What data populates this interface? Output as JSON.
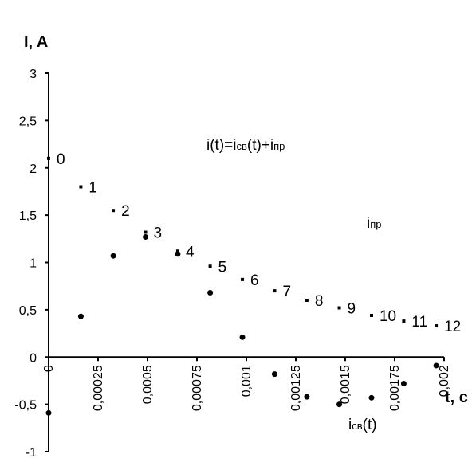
{
  "chart_data": {
    "type": "scatter",
    "title": "",
    "ylabel": "I, A",
    "xlabel": "t, c",
    "xlim": [
      0,
      0.002
    ],
    "ylim": [
      -1,
      3
    ],
    "x_ticks": [
      {
        "value": 0,
        "label": "0"
      },
      {
        "value": 0.00025,
        "label": "0,00025"
      },
      {
        "value": 0.0005,
        "label": "0,0005"
      },
      {
        "value": 0.00075,
        "label": "0,00075"
      },
      {
        "value": 0.001,
        "label": "0,001"
      },
      {
        "value": 0.00125,
        "label": "0,00125"
      },
      {
        "value": 0.0015,
        "label": "0,0015"
      },
      {
        "value": 0.00175,
        "label": "0,00175"
      },
      {
        "value": 0.002,
        "label": "0,002"
      }
    ],
    "y_ticks": [
      {
        "value": 3,
        "label": "3"
      },
      {
        "value": 2.5,
        "label": "2,5"
      },
      {
        "value": 2,
        "label": "2"
      },
      {
        "value": 1.5,
        "label": "1,5"
      },
      {
        "value": 1,
        "label": "1"
      },
      {
        "value": 0.5,
        "label": "0,5"
      },
      {
        "value": 0,
        "label": "0"
      },
      {
        "value": -0.5,
        "label": "-0,5"
      },
      {
        "value": -1,
        "label": "-1"
      }
    ],
    "grid": false,
    "series": [
      {
        "name": "i(t)=iсв(t)+iпр",
        "marker": "small-square",
        "x": [
          0,
          0.000163,
          0.000327,
          0.00049,
          0.000653,
          0.000817,
          0.00098,
          0.001143,
          0.001306,
          0.00147,
          0.001633,
          0.001796,
          0.00196
        ],
        "y": [
          2.1,
          1.8,
          1.55,
          1.32,
          1.12,
          0.96,
          0.82,
          0.7,
          0.6,
          0.52,
          0.44,
          0.38,
          0.33
        ],
        "point_labels": [
          "0",
          "1",
          "2",
          "3",
          "4",
          "5",
          "6",
          "7",
          "8",
          "9",
          "10",
          "11",
          "12"
        ]
      },
      {
        "name": "iсв(t)",
        "marker": "dot",
        "x": [
          0,
          0.000163,
          0.000327,
          0.00049,
          0.000653,
          0.000817,
          0.00098,
          0.001143,
          0.001306,
          0.00147,
          0.001633,
          0.001796,
          0.00196
        ],
        "y": [
          -0.59,
          0.43,
          1.07,
          1.27,
          1.09,
          0.68,
          0.21,
          -0.18,
          -0.42,
          -0.5,
          -0.43,
          -0.28,
          -0.09
        ]
      }
    ],
    "annotations": {
      "total_main": "i(t)=i",
      "total_sub1": "св",
      "total_mid": "(t)+i",
      "total_sub2": "пр",
      "forced_main": "i",
      "forced_sub": "пр",
      "free_main": "i",
      "free_sub": "св",
      "free_tail": "(t)"
    }
  }
}
